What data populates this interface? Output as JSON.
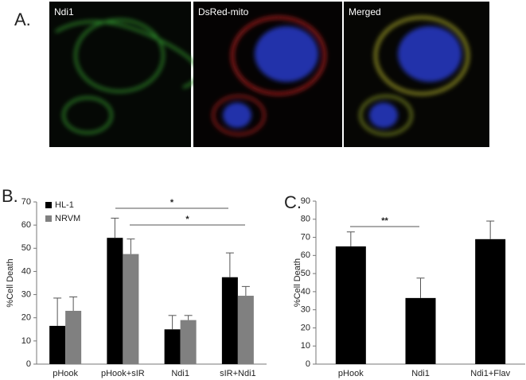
{
  "panel_a": {
    "label": "A.",
    "images": [
      "Ndi1",
      "DsRed-mito",
      "Merged"
    ]
  },
  "chart_data": [
    {
      "type": "bar",
      "panel_label": "B.",
      "ylabel": "%Cell Death",
      "categories": [
        "pHook",
        "pHook+sIR",
        "Ndi1",
        "sIR+Ndi1"
      ],
      "series": [
        {
          "name": "HL-1",
          "color": "#000000",
          "values": [
            16.5,
            54.5,
            15,
            37.5
          ],
          "errors": [
            12,
            8.5,
            6,
            10.5
          ]
        },
        {
          "name": "NRVM",
          "color": "#808080",
          "values": [
            23,
            47.5,
            19,
            29.5
          ],
          "errors": [
            6,
            6.5,
            2,
            4
          ]
        }
      ],
      "ylim": [
        0,
        70
      ],
      "yticks": [
        0,
        10,
        20,
        30,
        40,
        50,
        60,
        70
      ],
      "legend": "top-left",
      "annotations": [
        "*",
        "*"
      ]
    },
    {
      "type": "bar",
      "panel_label": "C.",
      "ylabel": "%Cell Death",
      "categories": [
        "pHook",
        "Ndi1",
        "Ndi1+Flav"
      ],
      "series": [
        {
          "color": "#000000",
          "values": [
            65,
            36.5,
            69
          ],
          "errors": [
            8,
            11,
            10
          ]
        }
      ],
      "ylim": [
        0,
        90
      ],
      "yticks": [
        0,
        10,
        20,
        30,
        40,
        50,
        60,
        70,
        80,
        90
      ],
      "annotations": [
        "**"
      ]
    }
  ]
}
